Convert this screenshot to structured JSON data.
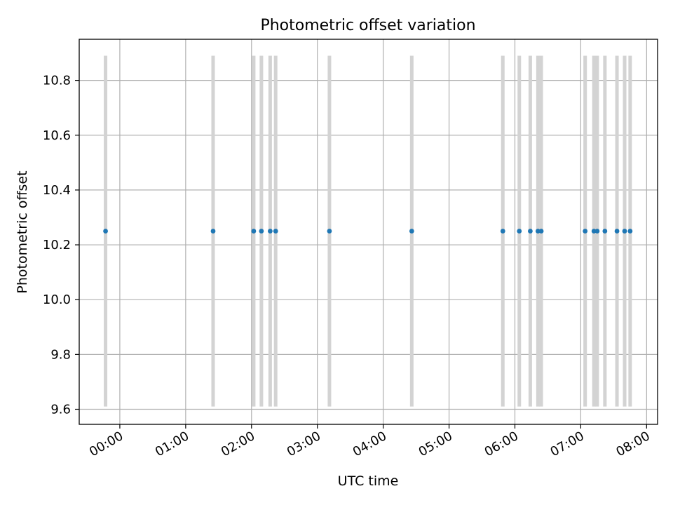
{
  "chart_data": {
    "type": "scatter",
    "title": "Photometric offset variation",
    "xlabel": "UTC time",
    "ylabel": "Photometric offset",
    "x_tick_labels": [
      "00:00",
      "01:00",
      "02:00",
      "03:00",
      "04:00",
      "05:00",
      "06:00",
      "07:00",
      "08:00"
    ],
    "y_tick_labels": [
      "9.6",
      "9.8",
      "10.0",
      "10.2",
      "10.4",
      "10.6",
      "10.8"
    ],
    "y_ticks": [
      9.6,
      9.8,
      10.0,
      10.2,
      10.4,
      10.6,
      10.8
    ],
    "x_ticks": [
      "00:00",
      "01:00",
      "02:00",
      "03:00",
      "04:00",
      "05:00",
      "06:00",
      "07:00",
      "08:00"
    ],
    "xlim": [
      "-00:37",
      "08:10"
    ],
    "ylim": [
      9.545,
      10.95
    ],
    "grid": true,
    "series": [
      {
        "marker_color": "#1f77b4",
        "errorbar_color": "#d3d3d3",
        "points": [
          {
            "x": "-00:13",
            "y": 10.25,
            "y_low": 9.61,
            "y_high": 10.89
          },
          {
            "x": "01:25",
            "y": 10.25,
            "y_low": 9.61,
            "y_high": 10.89
          },
          {
            "x": "02:02",
            "y": 10.25,
            "y_low": 9.61,
            "y_high": 10.89
          },
          {
            "x": "02:09",
            "y": 10.25,
            "y_low": 9.61,
            "y_high": 10.89
          },
          {
            "x": "02:17",
            "y": 10.25,
            "y_low": 9.61,
            "y_high": 10.89
          },
          {
            "x": "02:22",
            "y": 10.25,
            "y_low": 9.61,
            "y_high": 10.89
          },
          {
            "x": "03:11",
            "y": 10.25,
            "y_low": 9.61,
            "y_high": 10.89
          },
          {
            "x": "04:26",
            "y": 10.25,
            "y_low": 9.61,
            "y_high": 10.89
          },
          {
            "x": "05:49",
            "y": 10.25,
            "y_low": 9.61,
            "y_high": 10.89
          },
          {
            "x": "06:04",
            "y": 10.25,
            "y_low": 9.61,
            "y_high": 10.89
          },
          {
            "x": "06:14",
            "y": 10.25,
            "y_low": 9.61,
            "y_high": 10.89
          },
          {
            "x": "06:21",
            "y": 10.25,
            "y_low": 9.61,
            "y_high": 10.89
          },
          {
            "x": "06:24",
            "y": 10.25,
            "y_low": 9.61,
            "y_high": 10.89
          },
          {
            "x": "07:04",
            "y": 10.25,
            "y_low": 9.61,
            "y_high": 10.89
          },
          {
            "x": "07:12",
            "y": 10.25,
            "y_low": 9.61,
            "y_high": 10.89
          },
          {
            "x": "07:15",
            "y": 10.25,
            "y_low": 9.61,
            "y_high": 10.89
          },
          {
            "x": "07:22",
            "y": 10.25,
            "y_low": 9.61,
            "y_high": 10.89
          },
          {
            "x": "07:33",
            "y": 10.25,
            "y_low": 9.61,
            "y_high": 10.89
          },
          {
            "x": "07:40",
            "y": 10.25,
            "y_low": 9.61,
            "y_high": 10.89
          },
          {
            "x": "07:45",
            "y": 10.25,
            "y_low": 9.61,
            "y_high": 10.89
          }
        ]
      }
    ]
  }
}
